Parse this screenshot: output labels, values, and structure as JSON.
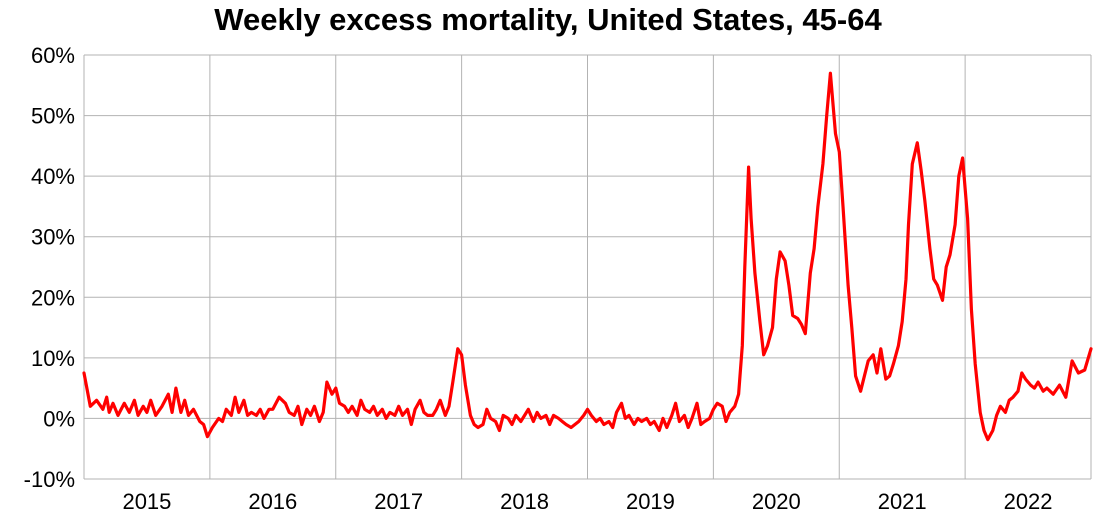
{
  "chart_data": {
    "type": "line",
    "title": "Weekly excess mortality, United States, 45-64",
    "xlabel": "",
    "ylabel": "",
    "x_tick_labels": [
      "2015",
      "2016",
      "2017",
      "2018",
      "2019",
      "2020",
      "2021",
      "2022"
    ],
    "y_tick_labels": [
      "60%",
      "50%",
      "40%",
      "30%",
      "20%",
      "10%",
      "0%",
      "-10%"
    ],
    "y_ticks": [
      60,
      50,
      40,
      30,
      20,
      10,
      0,
      -10
    ],
    "ylim": [
      -10,
      60
    ],
    "xlim": [
      2014.5,
      2022.5
    ],
    "grid": true,
    "legend": "none",
    "line_color": "#ff0000",
    "series": [
      {
        "points": [
          [
            2014.5,
            7.5
          ],
          [
            2014.55,
            2
          ],
          [
            2014.6,
            3
          ],
          [
            2014.65,
            1.5
          ],
          [
            2014.68,
            3.5
          ],
          [
            2014.7,
            1
          ],
          [
            2014.73,
            2.5
          ],
          [
            2014.77,
            0.5
          ],
          [
            2014.82,
            2.5
          ],
          [
            2014.86,
            1
          ],
          [
            2014.9,
            3
          ],
          [
            2014.93,
            0.5
          ],
          [
            2014.97,
            2
          ],
          [
            2015.0,
            1
          ],
          [
            2015.03,
            3
          ],
          [
            2015.07,
            0.5
          ],
          [
            2015.12,
            2
          ],
          [
            2015.17,
            4
          ],
          [
            2015.2,
            1
          ],
          [
            2015.23,
            5
          ],
          [
            2015.27,
            1
          ],
          [
            2015.3,
            3
          ],
          [
            2015.33,
            0.5
          ],
          [
            2015.37,
            1.5
          ],
          [
            2015.42,
            -0.5
          ],
          [
            2015.45,
            -1
          ],
          [
            2015.48,
            -3
          ],
          [
            2015.52,
            -1.5
          ],
          [
            2015.57,
            0
          ],
          [
            2015.6,
            -0.5
          ],
          [
            2015.63,
            1.5
          ],
          [
            2015.67,
            0.5
          ],
          [
            2015.7,
            3.5
          ],
          [
            2015.73,
            1
          ],
          [
            2015.77,
            3
          ],
          [
            2015.8,
            0.5
          ],
          [
            2015.83,
            1
          ],
          [
            2015.87,
            0.5
          ],
          [
            2015.9,
            1.5
          ],
          [
            2015.93,
            0
          ],
          [
            2015.97,
            1.5
          ],
          [
            2016.0,
            1.5
          ],
          [
            2016.05,
            3.5
          ],
          [
            2016.1,
            2.5
          ],
          [
            2016.13,
            1
          ],
          [
            2016.17,
            0.5
          ],
          [
            2016.2,
            2
          ],
          [
            2016.23,
            -1
          ],
          [
            2016.27,
            1.5
          ],
          [
            2016.3,
            0.5
          ],
          [
            2016.33,
            2
          ],
          [
            2016.37,
            -0.5
          ],
          [
            2016.4,
            1
          ],
          [
            2016.43,
            6
          ],
          [
            2016.47,
            4
          ],
          [
            2016.5,
            5
          ],
          [
            2016.53,
            2.5
          ],
          [
            2016.57,
            2
          ],
          [
            2016.6,
            1
          ],
          [
            2016.63,
            2
          ],
          [
            2016.67,
            0.5
          ],
          [
            2016.7,
            3
          ],
          [
            2016.73,
            1.5
          ],
          [
            2016.77,
            1
          ],
          [
            2016.8,
            2
          ],
          [
            2016.83,
            0.5
          ],
          [
            2016.87,
            1.5
          ],
          [
            2016.9,
            0
          ],
          [
            2016.93,
            1
          ],
          [
            2016.97,
            0.5
          ],
          [
            2017.0,
            2
          ],
          [
            2017.03,
            0.5
          ],
          [
            2017.07,
            1.5
          ],
          [
            2017.1,
            -1
          ],
          [
            2017.13,
            1.5
          ],
          [
            2017.17,
            3
          ],
          [
            2017.2,
            1
          ],
          [
            2017.23,
            0.5
          ],
          [
            2017.27,
            0.5
          ],
          [
            2017.3,
            1.5
          ],
          [
            2017.33,
            3
          ],
          [
            2017.37,
            0.5
          ],
          [
            2017.4,
            2
          ],
          [
            2017.43,
            6
          ],
          [
            2017.47,
            11.5
          ],
          [
            2017.5,
            10.5
          ],
          [
            2017.53,
            5.5
          ],
          [
            2017.57,
            0.5
          ],
          [
            2017.6,
            -1
          ],
          [
            2017.63,
            -1.5
          ],
          [
            2017.67,
            -1
          ],
          [
            2017.7,
            1.5
          ],
          [
            2017.73,
            0
          ],
          [
            2017.77,
            -0.5
          ],
          [
            2017.8,
            -2
          ],
          [
            2017.83,
            0.5
          ],
          [
            2017.87,
            0
          ],
          [
            2017.9,
            -1
          ],
          [
            2017.93,
            0.5
          ],
          [
            2017.97,
            -0.5
          ],
          [
            2018.0,
            0.5
          ],
          [
            2018.03,
            1.5
          ],
          [
            2018.07,
            -0.5
          ],
          [
            2018.1,
            1
          ],
          [
            2018.13,
            0
          ],
          [
            2018.17,
            0.5
          ],
          [
            2018.2,
            -1
          ],
          [
            2018.23,
            0.5
          ],
          [
            2018.27,
            0
          ],
          [
            2018.3,
            -0.5
          ],
          [
            2018.33,
            -1
          ],
          [
            2018.37,
            -1.5
          ],
          [
            2018.4,
            -1
          ],
          [
            2018.43,
            -0.5
          ],
          [
            2018.47,
            0.5
          ],
          [
            2018.5,
            1.5
          ],
          [
            2018.53,
            0.5
          ],
          [
            2018.57,
            -0.5
          ],
          [
            2018.6,
            0
          ],
          [
            2018.63,
            -1
          ],
          [
            2018.67,
            -0.5
          ],
          [
            2018.7,
            -1.5
          ],
          [
            2018.73,
            1
          ],
          [
            2018.77,
            2.5
          ],
          [
            2018.8,
            0
          ],
          [
            2018.83,
            0.5
          ],
          [
            2018.87,
            -1
          ],
          [
            2018.9,
            0
          ],
          [
            2018.93,
            -0.5
          ],
          [
            2018.97,
            0
          ],
          [
            2019.0,
            -1
          ],
          [
            2019.03,
            -0.5
          ],
          [
            2019.07,
            -2
          ],
          [
            2019.1,
            0
          ],
          [
            2019.13,
            -1.5
          ],
          [
            2019.17,
            0.5
          ],
          [
            2019.2,
            2.5
          ],
          [
            2019.23,
            -0.5
          ],
          [
            2019.27,
            0.5
          ],
          [
            2019.3,
            -1.5
          ],
          [
            2019.33,
            0
          ],
          [
            2019.37,
            2.5
          ],
          [
            2019.4,
            -1
          ],
          [
            2019.43,
            -0.5
          ],
          [
            2019.47,
            0
          ],
          [
            2019.5,
            1.5
          ],
          [
            2019.53,
            2.5
          ],
          [
            2019.57,
            2
          ],
          [
            2019.6,
            -0.5
          ],
          [
            2019.63,
            1
          ],
          [
            2019.67,
            2
          ],
          [
            2019.7,
            4
          ],
          [
            2019.73,
            12
          ],
          [
            2019.75,
            25
          ],
          [
            2019.78,
            41.5
          ],
          [
            2019.8,
            33
          ],
          [
            2019.83,
            24
          ],
          [
            2019.87,
            16
          ],
          [
            2019.9,
            10.5
          ],
          [
            2019.93,
            12
          ],
          [
            2019.97,
            15
          ],
          [
            2020.0,
            23
          ],
          [
            2020.03,
            27.5
          ],
          [
            2020.07,
            26
          ],
          [
            2020.1,
            22
          ],
          [
            2020.13,
            17
          ],
          [
            2020.17,
            16.5
          ],
          [
            2020.2,
            15.5
          ],
          [
            2020.23,
            14
          ],
          [
            2020.27,
            24
          ],
          [
            2020.3,
            28
          ],
          [
            2020.33,
            35
          ],
          [
            2020.37,
            42
          ],
          [
            2020.4,
            50
          ],
          [
            2020.43,
            57
          ],
          [
            2020.47,
            47
          ],
          [
            2020.5,
            44
          ],
          [
            2020.53,
            35
          ],
          [
            2020.57,
            22
          ],
          [
            2020.6,
            15
          ],
          [
            2020.63,
            7
          ],
          [
            2020.67,
            4.5
          ],
          [
            2020.7,
            7
          ],
          [
            2020.73,
            9.5
          ],
          [
            2020.77,
            10.5
          ],
          [
            2020.8,
            7.5
          ],
          [
            2020.83,
            11.5
          ],
          [
            2020.87,
            6.5
          ],
          [
            2020.9,
            7
          ],
          [
            2020.93,
            9
          ],
          [
            2020.97,
            12
          ],
          [
            2021.0,
            16
          ],
          [
            2021.03,
            23
          ],
          [
            2021.05,
            32
          ],
          [
            2021.08,
            42
          ],
          [
            2021.12,
            45.5
          ],
          [
            2021.15,
            41
          ],
          [
            2021.18,
            36
          ],
          [
            2021.22,
            28
          ],
          [
            2021.25,
            23
          ],
          [
            2021.28,
            22
          ],
          [
            2021.32,
            19.5
          ],
          [
            2021.35,
            25
          ],
          [
            2021.38,
            27
          ],
          [
            2021.42,
            32
          ],
          [
            2021.45,
            40
          ],
          [
            2021.48,
            43
          ],
          [
            2021.52,
            33
          ],
          [
            2021.55,
            18
          ],
          [
            2021.58,
            9
          ],
          [
            2021.62,
            1
          ],
          [
            2021.65,
            -2
          ],
          [
            2021.68,
            -3.5
          ],
          [
            2021.72,
            -2
          ],
          [
            2021.75,
            0.5
          ],
          [
            2021.78,
            2
          ],
          [
            2021.82,
            1
          ],
          [
            2021.85,
            3
          ],
          [
            2021.88,
            3.5
          ],
          [
            2021.92,
            4.5
          ],
          [
            2021.95,
            7.5
          ],
          [
            2021.98,
            6.5
          ],
          [
            2022.02,
            5.5
          ],
          [
            2022.05,
            5
          ],
          [
            2022.08,
            6
          ],
          [
            2022.12,
            4.5
          ],
          [
            2022.15,
            5
          ],
          [
            2022.2,
            4
          ],
          [
            2022.25,
            5.5
          ],
          [
            2022.3,
            3.5
          ],
          [
            2022.35,
            9.5
          ],
          [
            2022.4,
            7.5
          ],
          [
            2022.45,
            8
          ],
          [
            2022.5,
            11.5
          ]
        ]
      }
    ]
  }
}
